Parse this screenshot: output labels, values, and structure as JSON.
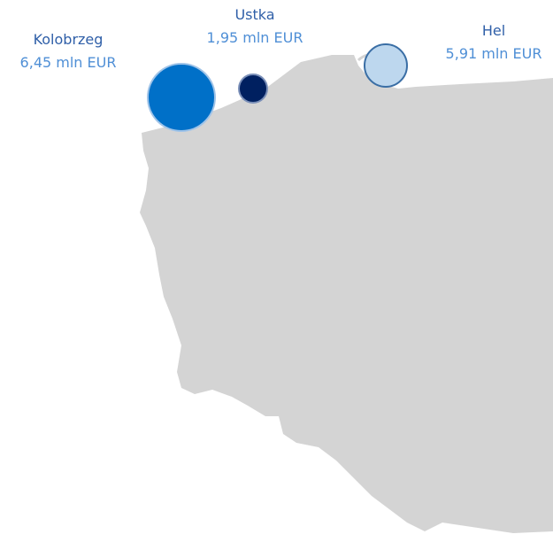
{
  "locations": [
    {
      "name": "Kolobrzeg",
      "value_label": "6,45 mln EUR",
      "color": "#0070c8"
    },
    {
      "name": "Ustka",
      "value_label": "1,95 mln EUR",
      "color": "#002060"
    },
    {
      "name": "Hel",
      "value_label": "5,91 mln EUR",
      "color": "#bdd7ee"
    }
  ]
}
